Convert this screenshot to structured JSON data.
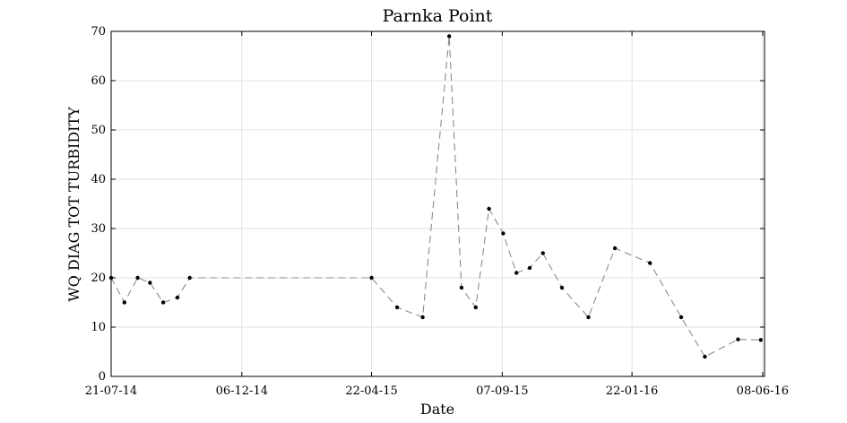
{
  "chart_data": {
    "type": "line",
    "title": "Parnka Point",
    "xlabel": "Date",
    "ylabel": "WQ DIAG TOT TURBIDITY",
    "x_tick_labels": [
      "21-07-14",
      "06-12-14",
      "22-04-15",
      "07-09-15",
      "22-01-16",
      "08-06-16"
    ],
    "x_tick_dates": [
      "2014-07-21",
      "2014-12-06",
      "2015-04-22",
      "2015-09-07",
      "2016-01-22",
      "2016-06-08"
    ],
    "xlim": [
      "2014-07-21",
      "2016-06-10"
    ],
    "ylim": [
      0,
      70
    ],
    "y_ticks": [
      0,
      10,
      20,
      30,
      40,
      50,
      60,
      70
    ],
    "grid": true,
    "line_style": "dashed",
    "line_color": "#8c8c8c",
    "marker_color": "#000000",
    "series": [
      {
        "points": [
          {
            "x": "2014-07-21",
            "y": 20
          },
          {
            "x": "2014-08-04",
            "y": 15
          },
          {
            "x": "2014-08-18",
            "y": 20
          },
          {
            "x": "2014-08-31",
            "y": 19
          },
          {
            "x": "2014-09-14",
            "y": 15
          },
          {
            "x": "2014-09-29",
            "y": 16
          },
          {
            "x": "2014-10-12",
            "y": 20
          },
          {
            "x": "2015-04-22",
            "y": 20
          },
          {
            "x": "2015-05-19",
            "y": 14
          },
          {
            "x": "2015-06-15",
            "y": 12
          },
          {
            "x": "2015-07-13",
            "y": 69
          },
          {
            "x": "2015-07-26",
            "y": 18
          },
          {
            "x": "2015-08-10",
            "y": 14
          },
          {
            "x": "2015-08-24",
            "y": 34
          },
          {
            "x": "2015-09-08",
            "y": 29
          },
          {
            "x": "2015-09-22",
            "y": 21
          },
          {
            "x": "2015-10-06",
            "y": 22
          },
          {
            "x": "2015-10-20",
            "y": 25
          },
          {
            "x": "2015-11-09",
            "y": 18
          },
          {
            "x": "2015-12-07",
            "y": 12
          },
          {
            "x": "2016-01-04",
            "y": 26
          },
          {
            "x": "2016-02-10",
            "y": 23
          },
          {
            "x": "2016-03-14",
            "y": 12
          },
          {
            "x": "2016-04-08",
            "y": 4
          },
          {
            "x": "2016-05-13",
            "y": 7.5
          },
          {
            "x": "2016-06-06",
            "y": 7.4
          }
        ]
      }
    ]
  }
}
